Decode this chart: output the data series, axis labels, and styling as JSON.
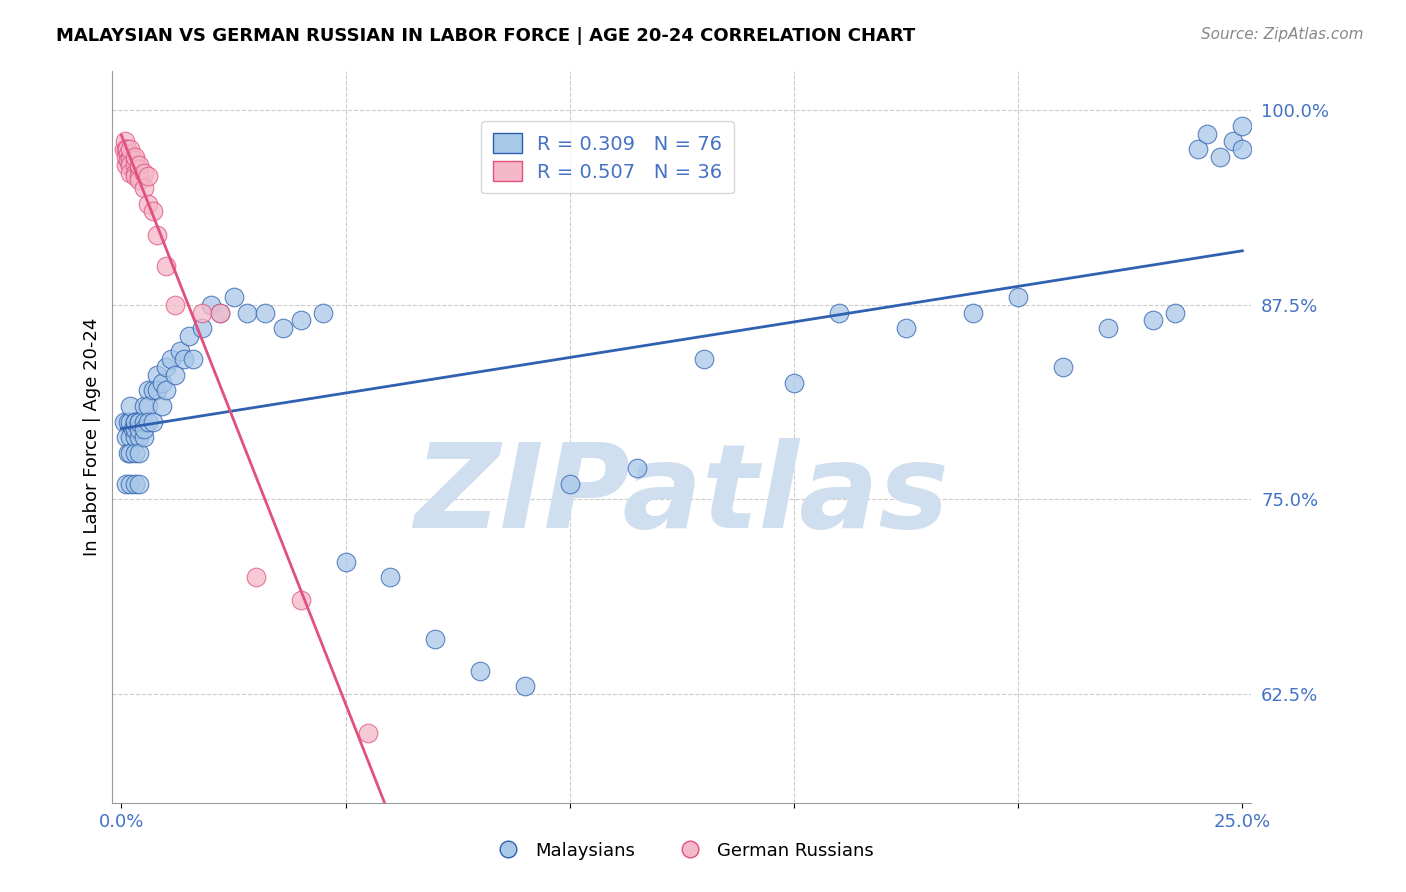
{
  "title": "MALAYSIAN VS GERMAN RUSSIAN IN LABOR FORCE | AGE 20-24 CORRELATION CHART",
  "source": "Source: ZipAtlas.com",
  "ylabel": "In Labor Force | Age 20-24",
  "legend_label_blue": "Malaysians",
  "legend_label_pink": "German Russians",
  "r_blue": 0.309,
  "n_blue": 76,
  "r_pink": 0.507,
  "n_pink": 36,
  "color_blue": "#a8c8e8",
  "color_pink": "#f4b8c8",
  "line_color_blue": "#3060b0",
  "line_color_pink": "#e05080",
  "legend_text_color": "#4472c4",
  "watermark": "ZIPatlas",
  "watermark_color": "#d0dff0",
  "xlim": [
    -0.002,
    0.252
  ],
  "ylim": [
    0.555,
    1.025
  ],
  "ytick_right": [
    0.625,
    0.75,
    0.875,
    1.0
  ],
  "ytick_right_labels": [
    "62.5%",
    "75.0%",
    "87.5%",
    "100.0%"
  ],
  "grid_color": "#cccccc",
  "axis_color": "#999999",
  "blue_x": [
    0.0005,
    0.001,
    0.001,
    0.0015,
    0.0015,
    0.002,
    0.002,
    0.002,
    0.002,
    0.002,
    0.0025,
    0.003,
    0.003,
    0.003,
    0.003,
    0.003,
    0.003,
    0.004,
    0.004,
    0.004,
    0.004,
    0.004,
    0.004,
    0.005,
    0.005,
    0.005,
    0.005,
    0.006,
    0.006,
    0.006,
    0.007,
    0.007,
    0.008,
    0.008,
    0.009,
    0.009,
    0.01,
    0.01,
    0.011,
    0.012,
    0.013,
    0.014,
    0.015,
    0.016,
    0.018,
    0.02,
    0.022,
    0.025,
    0.028,
    0.032,
    0.036,
    0.04,
    0.045,
    0.05,
    0.06,
    0.07,
    0.08,
    0.09,
    0.1,
    0.115,
    0.13,
    0.15,
    0.16,
    0.175,
    0.19,
    0.2,
    0.21,
    0.22,
    0.23,
    0.235,
    0.24,
    0.242,
    0.245,
    0.248,
    0.25,
    0.25
  ],
  "blue_y": [
    0.8,
    0.76,
    0.79,
    0.78,
    0.8,
    0.79,
    0.78,
    0.8,
    0.76,
    0.81,
    0.795,
    0.8,
    0.79,
    0.795,
    0.78,
    0.76,
    0.8,
    0.79,
    0.8,
    0.795,
    0.78,
    0.76,
    0.8,
    0.79,
    0.81,
    0.8,
    0.795,
    0.82,
    0.81,
    0.8,
    0.82,
    0.8,
    0.83,
    0.82,
    0.81,
    0.825,
    0.835,
    0.82,
    0.84,
    0.83,
    0.845,
    0.84,
    0.855,
    0.84,
    0.86,
    0.875,
    0.87,
    0.88,
    0.87,
    0.87,
    0.86,
    0.865,
    0.87,
    0.71,
    0.7,
    0.66,
    0.64,
    0.63,
    0.76,
    0.77,
    0.84,
    0.825,
    0.87,
    0.86,
    0.87,
    0.88,
    0.835,
    0.86,
    0.865,
    0.87,
    0.975,
    0.985,
    0.97,
    0.98,
    0.975,
    0.99
  ],
  "pink_x": [
    0.0005,
    0.0008,
    0.001,
    0.001,
    0.001,
    0.0012,
    0.0015,
    0.0015,
    0.002,
    0.002,
    0.002,
    0.002,
    0.002,
    0.002,
    0.003,
    0.003,
    0.003,
    0.003,
    0.003,
    0.004,
    0.004,
    0.004,
    0.004,
    0.005,
    0.005,
    0.006,
    0.006,
    0.007,
    0.008,
    0.01,
    0.012,
    0.018,
    0.022,
    0.03,
    0.04,
    0.055
  ],
  "pink_y": [
    0.975,
    0.98,
    0.975,
    0.965,
    0.97,
    0.975,
    0.972,
    0.968,
    0.965,
    0.97,
    0.968,
    0.975,
    0.965,
    0.96,
    0.968,
    0.965,
    0.96,
    0.97,
    0.958,
    0.962,
    0.958,
    0.965,
    0.955,
    0.96,
    0.95,
    0.958,
    0.94,
    0.935,
    0.92,
    0.9,
    0.875,
    0.87,
    0.87,
    0.7,
    0.685,
    0.6
  ]
}
